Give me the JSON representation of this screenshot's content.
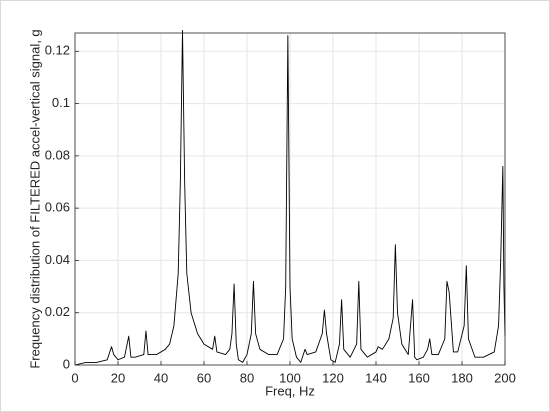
{
  "chart_data": {
    "type": "line",
    "xlabel": "Freq, Hz",
    "ylabel": "Frequency distribution of FILTERED accel-vertical signal, g",
    "x": [
      0,
      5,
      10,
      15,
      17,
      18,
      20,
      23,
      25,
      26,
      28,
      32,
      33,
      34,
      38,
      42,
      44,
      46,
      48,
      49,
      50,
      51,
      52,
      54,
      57,
      60,
      64,
      65,
      66,
      70,
      72,
      73,
      74,
      75,
      76,
      78,
      80,
      82,
      83,
      84,
      86,
      90,
      94,
      97,
      98,
      99,
      100,
      101,
      103,
      105,
      107,
      108,
      112,
      115,
      116,
      117,
      119,
      121,
      123,
      124,
      125,
      128,
      131,
      132,
      133,
      136,
      140,
      141,
      143,
      146,
      148,
      149,
      150,
      152,
      155,
      157,
      158,
      159,
      162,
      164,
      165,
      166,
      169,
      172,
      173,
      174,
      176,
      178,
      181,
      182,
      183,
      186,
      190,
      195,
      197,
      198,
      199,
      199.5,
      200
    ],
    "values": [
      0,
      0.001,
      0.001,
      0.002,
      0.007,
      0.004,
      0.002,
      0.003,
      0.011,
      0.003,
      0.003,
      0.004,
      0.013,
      0.004,
      0.004,
      0.006,
      0.008,
      0.015,
      0.035,
      0.07,
      0.128,
      0.07,
      0.035,
      0.02,
      0.012,
      0.008,
      0.006,
      0.011,
      0.005,
      0.004,
      0.006,
      0.012,
      0.031,
      0.008,
      0.002,
      0.001,
      0.004,
      0.012,
      0.032,
      0.012,
      0.006,
      0.004,
      0.004,
      0.01,
      0.03,
      0.126,
      0.03,
      0.01,
      0.003,
      0.001,
      0.006,
      0.004,
      0.005,
      0.012,
      0.021,
      0.012,
      0.002,
      0.001,
      0.008,
      0.025,
      0.006,
      0.003,
      0.008,
      0.032,
      0.006,
      0.003,
      0.005,
      0.007,
      0.006,
      0.01,
      0.018,
      0.046,
      0.02,
      0.008,
      0.004,
      0.025,
      0.003,
      0.002,
      0.003,
      0.006,
      0.01,
      0.004,
      0.004,
      0.01,
      0.032,
      0.028,
      0.005,
      0.005,
      0.015,
      0.038,
      0.01,
      0.003,
      0.003,
      0.005,
      0.015,
      0.04,
      0.076,
      0.03,
      0.011
    ],
    "color": "#000000",
    "xlim": [
      0,
      200
    ],
    "xticks": [
      0,
      20,
      40,
      60,
      80,
      100,
      120,
      140,
      160,
      180,
      200
    ],
    "ylim": [
      0,
      0.127
    ],
    "yticks": [
      0,
      0.02,
      0.04,
      0.06,
      0.08,
      0.1,
      0.12
    ],
    "grid": true
  }
}
